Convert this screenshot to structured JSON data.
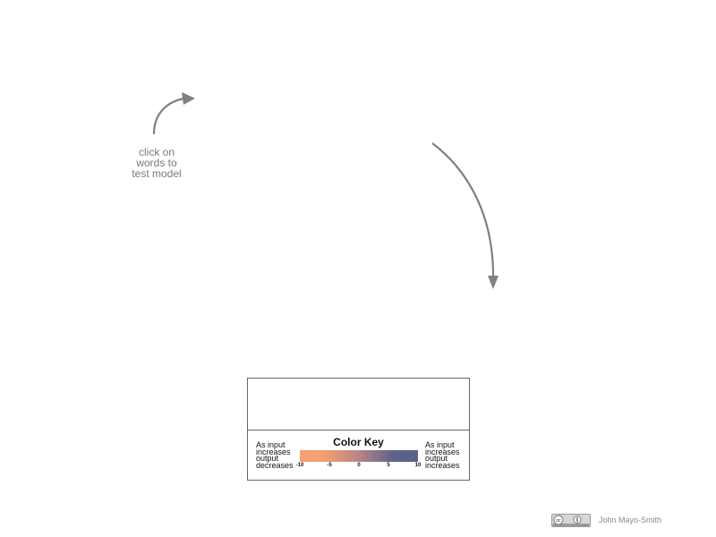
{
  "hint": {
    "lines": [
      "click on",
      "words to",
      "test model"
    ]
  },
  "color_key": {
    "title": "Color Key",
    "left_label": [
      "As input",
      "increases",
      "output",
      "decreases"
    ],
    "right_label": [
      "As input",
      "increases",
      "output",
      "increases"
    ],
    "ticks": [
      "-10",
      "-5",
      "0",
      "5",
      "10"
    ],
    "tick_values": [
      -10,
      -5,
      0,
      5,
      10
    ],
    "range": [
      -10,
      10
    ],
    "negative_color": "#f4a070",
    "neutral_color": "#b88488",
    "positive_color": "#5b6289"
  },
  "credit": {
    "author": "John Mayo-Smith",
    "license_icon": "creative-commons-by-icon"
  }
}
